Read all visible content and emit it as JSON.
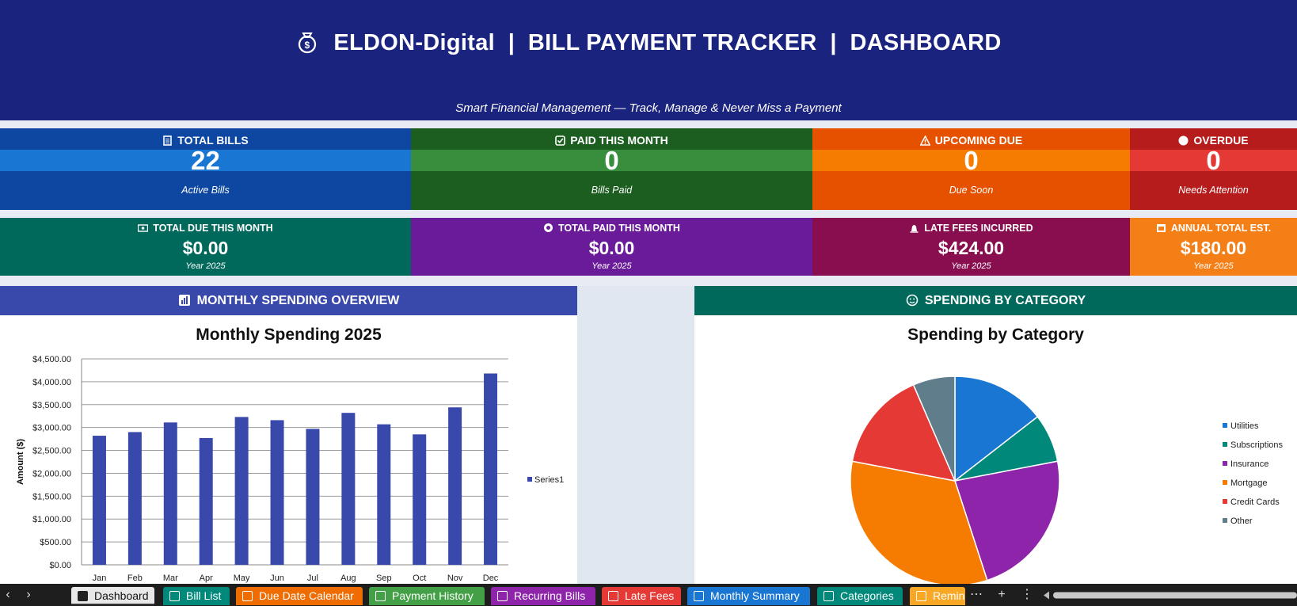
{
  "banner": {
    "title": "ELDON-Digital  |  BILL PAYMENT TRACKER  |  DASHBOARD",
    "subtitle": "Smart Financial Management — Track, Manage & Never Miss a Payment"
  },
  "kpis_top": [
    {
      "label": "TOTAL BILLS",
      "value": "22",
      "sub": "Active Bills",
      "icon": "bill-icon"
    },
    {
      "label": "PAID THIS MONTH",
      "value": "0",
      "sub": "Bills Paid",
      "icon": "check-box-icon"
    },
    {
      "label": "UPCOMING DUE",
      "value": "0",
      "sub": "Due Soon",
      "icon": "warning-icon"
    },
    {
      "label": "OVERDUE",
      "value": "0",
      "sub": "Needs Attention",
      "icon": "circle-icon"
    }
  ],
  "kpis_bottom": [
    {
      "label": "TOTAL DUE THIS MONTH",
      "value": "$0.00",
      "sub": "Year 2025",
      "icon": "money-icon"
    },
    {
      "label": "TOTAL PAID THIS MONTH",
      "value": "$0.00",
      "sub": "Year 2025",
      "icon": "coins-icon"
    },
    {
      "label": "LATE FEES INCURRED",
      "value": "$424.00",
      "sub": "Year 2025",
      "icon": "alarm-icon"
    },
    {
      "label": "ANNUAL TOTAL EST.",
      "value": "$180.00",
      "sub": "Year 2025",
      "icon": "calendar-icon"
    }
  ],
  "sections": {
    "monthly": "MONTHLY SPENDING OVERVIEW",
    "category": "SPENDING BY CATEGORY"
  },
  "colors": {
    "banner": "#1a237e",
    "bar": "#3949ab",
    "utilities": "#1976d2",
    "subscriptions": "#00897b",
    "insurance": "#8e24aa",
    "mortgage": "#f57c00",
    "credit_cards": "#e53935",
    "other": "#607d8b"
  },
  "chart_data": [
    {
      "type": "bar",
      "title": "Monthly Spending 2025",
      "ylabel": "Amount ($)",
      "xlabel": "",
      "categories": [
        "Jan",
        "Feb",
        "Mar",
        "Apr",
        "May",
        "Jun",
        "Jul",
        "Aug",
        "Sep",
        "Oct",
        "Nov",
        "Dec"
      ],
      "series": [
        {
          "name": "Series1",
          "values": [
            2820,
            2900,
            3110,
            2770,
            3230,
            3160,
            2970,
            3320,
            3070,
            2850,
            3440,
            4180
          ]
        }
      ],
      "ylim": [
        0,
        4500
      ],
      "yticks": [
        "$0.00",
        "$500.00",
        "$1,000.00",
        "$1,500.00",
        "$2,000.00",
        "$2,500.00",
        "$3,000.00",
        "$3,500.00",
        "$4,000.00",
        "$4,500.00"
      ],
      "grid": true,
      "legend": "right"
    },
    {
      "type": "pie",
      "title": "Spending by Category",
      "categories": [
        "Utilities",
        "Subscriptions",
        "Insurance",
        "Mortgage",
        "Credit Cards",
        "Other"
      ],
      "values": [
        14.5,
        7.5,
        23,
        33,
        15.5,
        6.5
      ],
      "legend": "right"
    }
  ],
  "tabs": [
    {
      "label": "Dashboard",
      "icon": "dashboard-icon",
      "color": "#e8e8e8",
      "active": true
    },
    {
      "label": "Bill List",
      "icon": "list-icon",
      "color": "#00897b"
    },
    {
      "label": "Due Date Calendar",
      "icon": "calendar-icon",
      "color": "#ef6c00"
    },
    {
      "label": "Payment History",
      "icon": "card-icon",
      "color": "#43a047"
    },
    {
      "label": "Recurring Bills",
      "icon": "repeat-icon",
      "color": "#8e24aa"
    },
    {
      "label": "Late Fees",
      "icon": "tag-icon",
      "color": "#e53935"
    },
    {
      "label": "Monthly Summary",
      "icon": "report-icon",
      "color": "#1976d2"
    },
    {
      "label": "Categories",
      "icon": "tag-icon",
      "color": "#00897b"
    },
    {
      "label": "Remin",
      "icon": "bell-icon",
      "color": "#f9a825"
    }
  ],
  "tabbar_controls": {
    "more": "⋯",
    "add": "+",
    "menu": "⋮",
    "prev": "‹",
    "next": "›"
  }
}
